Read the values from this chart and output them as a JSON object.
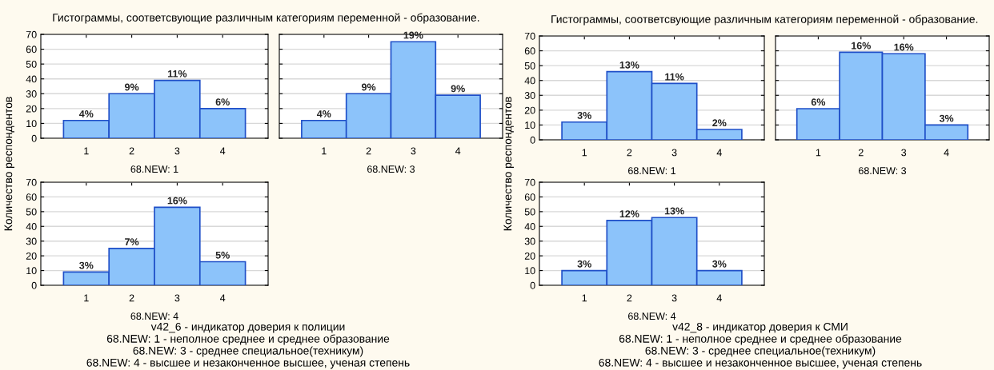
{
  "chart_data": [
    {
      "type": "histogram",
      "title": "Гистограммы, соответсвующие различным категориям переменной - образование.",
      "ylabel": "Количество респондентов",
      "xlabel": "68.NEW: 1",
      "bins": [
        0.5,
        1.5,
        2.5,
        3.5,
        4.5
      ],
      "values": [
        12,
        30,
        39,
        20
      ],
      "color": "#8cc3fa",
      "xlim": [
        0,
        5
      ],
      "xticks": [
        1,
        2,
        3,
        4
      ],
      "ylim": [
        0,
        70
      ],
      "yticks": [
        0,
        10,
        20,
        30,
        40,
        50,
        60,
        70
      ],
      "grid": "y",
      "annotations": [
        {
          "text": "4%",
          "x": 1,
          "y": 12
        },
        {
          "text": "9%",
          "x": 2,
          "y": 30
        },
        {
          "text": "11%",
          "x": 3,
          "y": 39
        },
        {
          "text": "6%",
          "x": 4,
          "y": 20
        }
      ]
    },
    {
      "type": "histogram",
      "xlabel": "68.NEW: 3",
      "bins": [
        0.5,
        1.5,
        2.5,
        3.5,
        4.5
      ],
      "values": [
        12,
        30,
        65,
        29
      ],
      "color": "#8cc3fa",
      "xlim": [
        0,
        5
      ],
      "xticks": [
        1,
        2,
        3,
        4
      ],
      "ylim": [
        0,
        70
      ],
      "yticks": [
        0,
        10,
        20,
        30,
        40,
        50,
        60,
        70
      ],
      "grid": "y",
      "tick_labels": "x",
      "annotations": [
        {
          "text": "4%",
          "x": 1,
          "y": 12
        },
        {
          "text": "9%",
          "x": 2,
          "y": 30
        },
        {
          "text": "19%",
          "x": 3,
          "y": 65
        },
        {
          "text": "9%",
          "x": 4,
          "y": 29
        }
      ]
    },
    {
      "type": "histogram",
      "title": "Гистограммы, соответсвующие различным категориям переменной - образование.",
      "ylabel": "Количество респондентов",
      "xlabel": "68.NEW: 1",
      "bins": [
        0.5,
        1.5,
        2.5,
        3.5,
        4.5
      ],
      "values": [
        12,
        46,
        38,
        7
      ],
      "color": "#8cc3fa",
      "xlim": [
        0,
        5
      ],
      "xticks": [
        1,
        2,
        3,
        4
      ],
      "ylim": [
        0,
        70
      ],
      "yticks": [
        0,
        10,
        20,
        30,
        40,
        50,
        60,
        70
      ],
      "grid": "y",
      "annotations": [
        {
          "text": "3%",
          "x": 1,
          "y": 12
        },
        {
          "text": "13%",
          "x": 2,
          "y": 46
        },
        {
          "text": "11%",
          "x": 3,
          "y": 38
        },
        {
          "text": "2%",
          "x": 4,
          "y": 7
        }
      ]
    },
    {
      "type": "histogram",
      "xlabel": "68.NEW: 3",
      "bins": [
        0.5,
        1.5,
        2.5,
        3.5,
        4.5
      ],
      "values": [
        21,
        59,
        58,
        10
      ],
      "color": "#8cc3fa",
      "xlim": [
        0,
        5
      ],
      "xticks": [
        1,
        2,
        3,
        4
      ],
      "ylim": [
        0,
        70
      ],
      "yticks": [
        0,
        10,
        20,
        30,
        40,
        50,
        60,
        70
      ],
      "grid": "y",
      "tick_labels": "x",
      "annotations": [
        {
          "text": "6%",
          "x": 1,
          "y": 21
        },
        {
          "text": "16%",
          "x": 2,
          "y": 59
        },
        {
          "text": "16%",
          "x": 3,
          "y": 58
        },
        {
          "text": "3%",
          "x": 4,
          "y": 10
        }
      ]
    },
    {
      "type": "histogram",
      "xlabel": "68.NEW: 4",
      "bins": [
        0.5,
        1.5,
        2.5,
        3.5,
        4.5
      ],
      "values": [
        9,
        25,
        53,
        16
      ],
      "color": "#8cc3fa",
      "xlim": [
        0,
        5
      ],
      "xticks": [
        1,
        2,
        3,
        4
      ],
      "ylim": [
        0,
        70
      ],
      "yticks": [
        0,
        10,
        20,
        30,
        40,
        50,
        60,
        70
      ],
      "grid": "y",
      "annotations": [
        {
          "text": "3%",
          "x": 1,
          "y": 9
        },
        {
          "text": "7%",
          "x": 2,
          "y": 25
        },
        {
          "text": "16%",
          "x": 3,
          "y": 53
        },
        {
          "text": "5%",
          "x": 4,
          "y": 16
        },
        "v42_6 - индикатор доверия к полиции",
        "68.NEW: 1 - неполное среднее и среднее образование",
        "68.NEW: 3 - среднее специальное(техникум)",
        "68.NEW: 4 - высшее и незаконченное высшее, ученая степень"
      ]
    },
    {
      "type": "histogram",
      "xlabel": "68.NEW: 4",
      "bins": [
        0.5,
        1.5,
        2.5,
        3.5,
        4.5
      ],
      "values": [
        10,
        44,
        46,
        10
      ],
      "color": "#8cc3fa",
      "xlim": [
        0,
        5
      ],
      "xticks": [
        1,
        2,
        3,
        4
      ],
      "ylim": [
        0,
        70
      ],
      "yticks": [
        0,
        10,
        20,
        30,
        40,
        50,
        60,
        70
      ],
      "grid": "y",
      "annotations": [
        {
          "text": "3%",
          "x": 1,
          "y": 10
        },
        {
          "text": "12%",
          "x": 2,
          "y": 44
        },
        {
          "text": "13%",
          "x": 3,
          "y": 46
        },
        {
          "text": "3%",
          "x": 4,
          "y": 10
        },
        "v42_8 - индикатор доверия к СМИ",
        "68.NEW: 1 - неполное среднее и среднее образование",
        "68.NEW: 3 - среднее специальное(техникум)",
        "68.NEW: 4 - высшее и незаконченное высшее, ученая степень"
      ]
    }
  ]
}
